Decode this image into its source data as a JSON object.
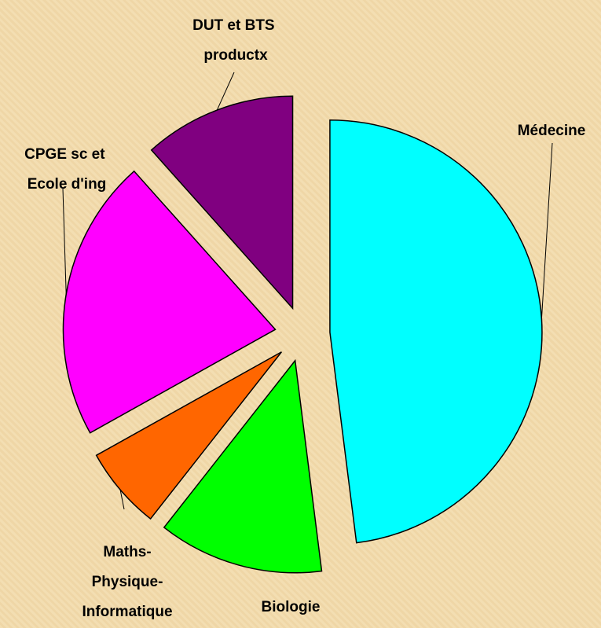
{
  "chart_data": {
    "type": "pie",
    "categories": [
      "Médecine",
      "Biologie",
      "Maths-Physique-Informatique",
      "CPGE sc et Ecole d'ing",
      "DUT et BTS productx"
    ],
    "values": [
      48,
      12.6,
      6.3,
      21.5,
      11.6
    ],
    "colors": [
      "#00ffff",
      "#00ff00",
      "#ff6600",
      "#ff00ff",
      "#800080"
    ],
    "start_angle": 0,
    "direction": "clockwise",
    "exploded": true
  }
}
